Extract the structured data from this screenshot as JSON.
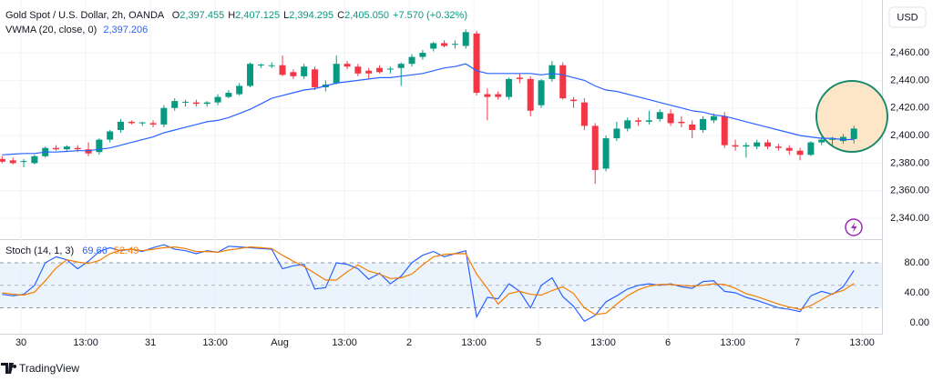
{
  "chart_data": [
    {
      "type": "candlestick",
      "title": "Gold Spot / U.S. Dollar, 2h, OANDA",
      "ohlc_legend": [
        {
          "label": "O",
          "value": "2,397.455"
        },
        {
          "label": "H",
          "value": "2,407.125"
        },
        {
          "label": "L",
          "value": "2,394.295"
        },
        {
          "label": "C",
          "value": "2,405.050"
        }
      ],
      "change": "+7.570 (+0.32%)",
      "currency": "USD",
      "up_color": "#089981",
      "down_color": "#f23645",
      "open": [
        2383,
        2382,
        2381,
        2380,
        2385,
        2391,
        2390,
        2391,
        2390,
        2388,
        2397,
        2404,
        2410,
        2409,
        2409,
        2408,
        2420,
        2424,
        2424,
        2423,
        2424,
        2428,
        2430,
        2436,
        2451,
        2451,
        2451,
        2446,
        2443,
        2448,
        2435,
        2438,
        2452,
        2450,
        2447,
        2449,
        2448,
        2449,
        2452,
        2457,
        2463,
        2467,
        2466,
        2465,
        2474,
        2430,
        2430,
        2428,
        2442,
        2441,
        2422,
        2441,
        2451,
        2426,
        2424,
        2407,
        2376,
        2398,
        2405,
        2411,
        2410,
        2412,
        2416,
        2410,
        2408,
        2404,
        2411,
        2414,
        2393,
        2392,
        2392,
        2395,
        2392,
        2391,
        2389,
        2386,
        2395,
        2397,
        2396,
        2397.455
      ],
      "high": [
        2385,
        2384,
        2383,
        2386,
        2392,
        2393,
        2393,
        2393,
        2395,
        2398,
        2404,
        2412,
        2411,
        2410,
        2411,
        2422,
        2427,
        2426,
        2426,
        2425,
        2430,
        2433,
        2438,
        2453,
        2452,
        2453,
        2458,
        2448,
        2452,
        2450,
        2440,
        2458,
        2454,
        2452,
        2449,
        2451,
        2450,
        2453,
        2459,
        2462,
        2468,
        2469,
        2469,
        2477,
        2476,
        2434,
        2432,
        2442,
        2445,
        2443,
        2441,
        2454,
        2453,
        2428,
        2427,
        2409,
        2400,
        2410,
        2413,
        2413,
        2418,
        2419,
        2419,
        2414,
        2411,
        2414,
        2416,
        2417,
        2397,
        2395,
        2397,
        2397,
        2394,
        2393,
        2391,
        2396,
        2399,
        2399,
        2401,
        2407.125
      ],
      "low": [
        2380,
        2379,
        2377,
        2379,
        2384,
        2389,
        2389,
        2388,
        2385,
        2386,
        2395,
        2402,
        2408,
        2407,
        2406,
        2406,
        2418,
        2421,
        2421,
        2421,
        2422,
        2427,
        2429,
        2435,
        2449,
        2449,
        2443,
        2441,
        2441,
        2433,
        2432,
        2437,
        2448,
        2443,
        2441,
        2445,
        2445,
        2436,
        2450,
        2455,
        2461,
        2464,
        2463,
        2463,
        2429,
        2411,
        2426,
        2426,
        2438,
        2414,
        2420,
        2439,
        2426,
        2420,
        2404,
        2365,
        2374,
        2396,
        2403,
        2407,
        2408,
        2410,
        2407,
        2406,
        2398,
        2402,
        2409,
        2391,
        2389,
        2384,
        2390,
        2390,
        2389,
        2386,
        2382,
        2385,
        2393,
        2393,
        2394,
        2394.295
      ],
      "close": [
        2381,
        2380,
        2381.5,
        2385,
        2391,
        2390,
        2392,
        2390,
        2387,
        2397,
        2403,
        2410,
        2409,
        2409.5,
        2408,
        2420,
        2425,
        2424.5,
        2423,
        2424,
        2428,
        2431,
        2436,
        2452,
        2451.5,
        2451,
        2444,
        2443,
        2450,
        2435,
        2437,
        2452,
        2450,
        2445,
        2445,
        2446,
        2448.5,
        2452,
        2457,
        2460,
        2467,
        2465,
        2466.5,
        2475,
        2431,
        2428,
        2428,
        2441,
        2441,
        2418,
        2440,
        2451,
        2427,
        2425,
        2407,
        2375,
        2398,
        2405,
        2411,
        2410,
        2411,
        2417,
        2409,
        2409,
        2404,
        2412,
        2414,
        2393,
        2392,
        2393,
        2395,
        2392,
        2391,
        2389,
        2386,
        2395,
        2397,
        2397.5,
        2399,
        2405.05
      ],
      "series": [
        {
          "name": "VWMA (20, close, 0)",
          "color": "#2962ff",
          "value_label": "2,397.206",
          "values": [
            2386,
            2386.5,
            2387,
            2387,
            2388,
            2388,
            2388.5,
            2389,
            2389,
            2390,
            2391,
            2393,
            2395,
            2397,
            2399,
            2402,
            2404,
            2406,
            2408,
            2410,
            2411,
            2413,
            2416,
            2419,
            2423,
            2427,
            2429,
            2431,
            2433,
            2434,
            2436,
            2438,
            2439,
            2440,
            2441,
            2442,
            2442,
            2443,
            2444,
            2445,
            2447,
            2449,
            2450,
            2452,
            2447,
            2445,
            2445,
            2445,
            2445,
            2445,
            2444,
            2445,
            2444,
            2442,
            2440,
            2436,
            2433,
            2432,
            2430,
            2428,
            2426,
            2424,
            2422,
            2420,
            2418,
            2417,
            2415,
            2414,
            2412,
            2410,
            2408,
            2406,
            2404,
            2402,
            2400,
            2399,
            2398,
            2398,
            2397,
            2397.206
          ]
        }
      ],
      "xlim": [
        -0.2,
        81.6
      ],
      "xticks": [
        {
          "value": 1.75,
          "label": "30"
        },
        {
          "value": 7.75,
          "label": "13:00"
        },
        {
          "value": 13.75,
          "label": "31"
        },
        {
          "value": 19.75,
          "label": "13:00"
        },
        {
          "value": 25.75,
          "label": "Aug"
        },
        {
          "value": 31.75,
          "label": "13:00"
        },
        {
          "value": 37.75,
          "label": "2"
        },
        {
          "value": 43.75,
          "label": "13:00"
        },
        {
          "value": 49.75,
          "label": "5"
        },
        {
          "value": 55.75,
          "label": "13:00"
        },
        {
          "value": 61.75,
          "label": "6"
        },
        {
          "value": 67.75,
          "label": "13:00"
        },
        {
          "value": 73.75,
          "label": "7"
        },
        {
          "value": 79.75,
          "label": "13:00"
        }
      ],
      "ylim": [
        2325.5,
        2498.3
      ],
      "yticks": [
        {
          "value": 2340,
          "label": "2,340.00"
        },
        {
          "value": 2360,
          "label": "2,360.00"
        },
        {
          "value": 2380,
          "label": "2,380.00"
        },
        {
          "value": 2400,
          "label": "2,400.00"
        },
        {
          "value": 2420,
          "label": "2,420.00"
        },
        {
          "value": 2440,
          "label": "2,440.00"
        },
        {
          "value": 2460,
          "label": "2,460.00"
        }
      ],
      "grid": true
    },
    {
      "type": "line",
      "title": "Stoch (14, 1, 3)",
      "series": [
        {
          "name": "%K",
          "color": "#2962ff",
          "values": [
            38,
            36,
            38,
            50,
            80,
            88,
            84,
            72,
            82,
            95,
            100,
            96,
            98,
            95,
            100,
            104,
            98,
            96,
            92,
            96,
            94,
            102,
            101,
            100,
            99,
            98,
            72,
            76,
            78,
            45,
            47,
            80,
            78,
            72,
            58,
            66,
            52,
            62,
            80,
            90,
            95,
            88,
            92,
            96,
            8,
            34,
            32,
            52,
            42,
            20,
            50,
            60,
            35,
            22,
            2,
            10,
            28,
            36,
            45,
            50,
            52,
            50,
            52,
            48,
            46,
            55,
            56,
            42,
            40,
            34,
            30,
            25,
            20,
            18,
            15,
            36,
            42,
            38,
            48,
            69.66
          ]
        },
        {
          "name": "%D",
          "color": "#f57c00",
          "values": [
            40,
            38,
            37,
            41,
            56,
            73,
            84,
            81,
            79,
            83,
            92,
            97,
            98,
            96,
            98,
            100,
            101,
            99,
            95,
            95,
            94,
            97,
            99,
            101,
            100,
            99,
            90,
            82,
            75,
            66,
            57,
            57,
            68,
            77,
            69,
            65,
            59,
            60,
            65,
            77,
            88,
            91,
            92,
            92,
            65,
            46,
            25,
            39,
            42,
            38,
            37,
            43,
            48,
            39,
            20,
            11,
            13,
            25,
            36,
            44,
            49,
            51,
            51,
            50,
            49,
            50,
            52,
            51,
            46,
            39,
            35,
            30,
            25,
            21,
            18,
            23,
            31,
            39,
            43,
            52.49
          ]
        }
      ],
      "band": [
        20,
        80
      ],
      "midline": 50,
      "band_color": "#e3f0fc",
      "xlim": [
        -0.2,
        81.6
      ],
      "ylim": [
        -12,
        109
      ],
      "yticks": [
        {
          "value": 0,
          "label": "0.00"
        },
        {
          "value": 40,
          "label": "40.00"
        },
        {
          "value": 80,
          "label": "80.00"
        }
      ]
    }
  ],
  "footer": {
    "brand": "TradingView"
  }
}
